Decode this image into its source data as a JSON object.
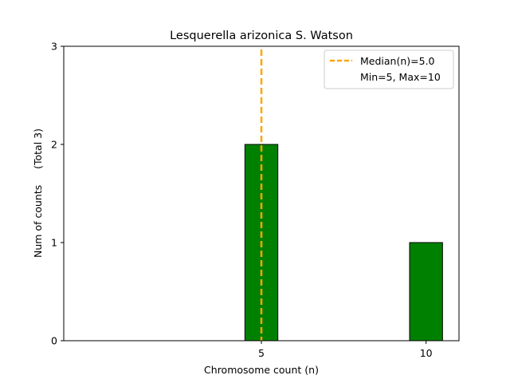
{
  "chart_data": {
    "type": "bar",
    "title": "Lesquerella arizonica S. Watson",
    "xlabel": "Chromosome count (n)",
    "ylabel": "Num of counts     (Total 3)",
    "xlim": [
      -1,
      11
    ],
    "ylim": [
      0,
      3
    ],
    "xticks": [
      5,
      10
    ],
    "yticks": [
      0,
      1,
      2,
      3
    ],
    "bar_width": 1,
    "bars": [
      {
        "x": 5,
        "value": 2
      },
      {
        "x": 10,
        "value": 1
      }
    ],
    "bar_color": "#008000",
    "bar_edge_color": "#000000",
    "median": {
      "value": 5.0,
      "label": "Median(n)=5.0",
      "color": "#FFA500"
    },
    "legend": {
      "placement": "top-right",
      "entries": [
        "Median(n)=5.0",
        "Min=5, Max=10"
      ]
    },
    "grid": false
  }
}
